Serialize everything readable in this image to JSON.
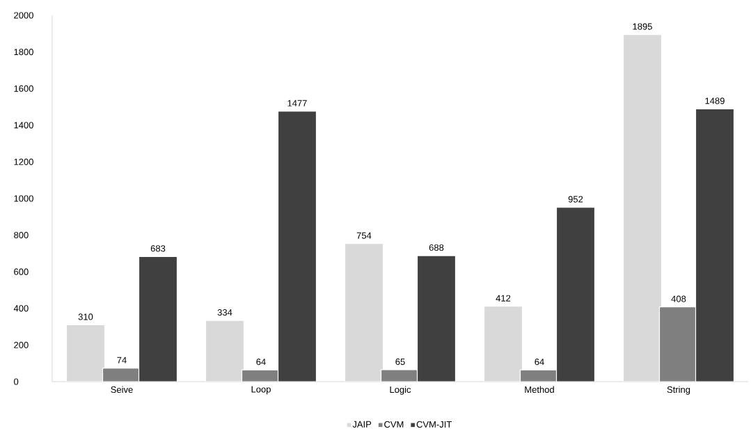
{
  "chart_data": {
    "type": "bar",
    "categories": [
      "Seive",
      "Loop",
      "Logic",
      "Method",
      "String"
    ],
    "series": [
      {
        "name": "JAIP",
        "color": "#d9d9d9",
        "values": [
          310,
          334,
          754,
          412,
          1895
        ]
      },
      {
        "name": "CVM",
        "color": "#7f7f7f",
        "values": [
          74,
          64,
          65,
          64,
          408
        ]
      },
      {
        "name": "CVM-JIT",
        "color": "#404040",
        "values": [
          683,
          1477,
          688,
          952,
          1489
        ]
      }
    ],
    "ylim": [
      0,
      2000
    ],
    "yticks": [
      0,
      200,
      400,
      600,
      800,
      1000,
      1200,
      1400,
      1600,
      1800,
      2000
    ],
    "data_labels": true,
    "legend": "bottom",
    "grid": false
  }
}
